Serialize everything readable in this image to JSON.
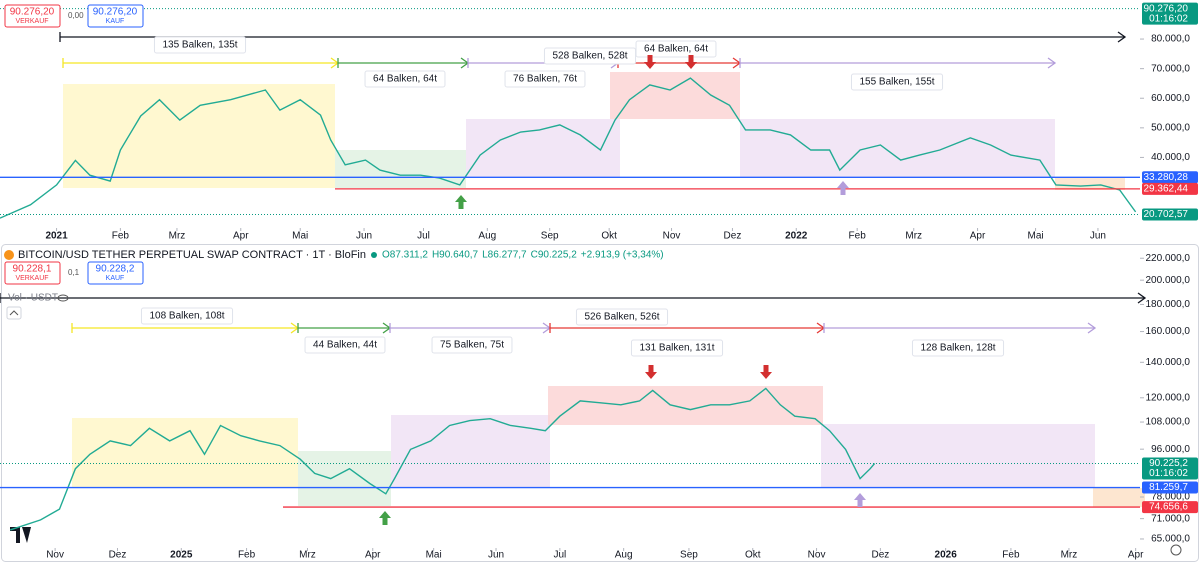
{
  "chart_data": [
    {
      "type": "line",
      "color": "#22ab94",
      "log_scale": false,
      "trade": {
        "sell_price": "90.276,20",
        "sell_label": "VERKAUF",
        "spread": "0,00",
        "buy_price": "90.276,20",
        "buy_label": "KAUF"
      },
      "x": [
        0,
        2.1,
        3.9,
        5.2,
        6.2,
        7.6,
        8.3,
        9.7,
        11.0,
        12.4,
        13.8,
        15.9,
        18.3,
        19.3,
        20.7,
        22.1,
        22.8,
        23.8,
        25.2,
        26.2,
        27.6,
        29.0,
        30.3,
        31.7,
        33.1,
        34.5,
        35.9,
        37.2,
        38.6,
        40.0,
        41.4,
        42.4,
        43.4,
        44.8,
        46.2,
        47.6,
        49.0,
        50.3,
        51.4,
        53.1,
        54.5,
        55.9,
        57.2,
        57.9,
        59.3,
        60.7,
        62.1,
        63.4,
        64.8,
        66.9,
        68.3,
        69.7,
        71.7,
        72.8,
        74.5,
        75.9,
        77.2,
        78.3
      ],
      "values": [
        19500,
        24000,
        30700,
        39000,
        34000,
        32000,
        42500,
        54000,
        59500,
        52600,
        57600,
        59500,
        62800,
        56000,
        59500,
        54300,
        45900,
        37500,
        39100,
        35700,
        34000,
        34000,
        33000,
        30700,
        40800,
        45900,
        48600,
        49300,
        51000,
        47600,
        42500,
        52600,
        59500,
        64500,
        62800,
        66800,
        61100,
        57600,
        49300,
        49300,
        47600,
        42500,
        42500,
        35700,
        42500,
        44200,
        39100,
        40800,
        42500,
        46600,
        44200,
        40800,
        39100,
        30700,
        30300,
        30700,
        29000,
        21600
      ],
      "xlim": [
        0,
        78.6
      ],
      "xticks": [
        {
          "value": 3.9,
          "label": "2021"
        },
        {
          "value": 8.3,
          "label": "Feb"
        },
        {
          "value": 12.2,
          "label": "Mrz"
        },
        {
          "value": 16.6,
          "label": "Apr"
        },
        {
          "value": 20.7,
          "label": "Mai"
        },
        {
          "value": 25.1,
          "label": "Jun"
        },
        {
          "value": 29.2,
          "label": "Jul"
        },
        {
          "value": 33.6,
          "label": "Aug"
        },
        {
          "value": 37.9,
          "label": "Sep"
        },
        {
          "value": 42.0,
          "label": "Okt"
        },
        {
          "value": 46.3,
          "label": "Nov"
        },
        {
          "value": 50.5,
          "label": "Dez"
        },
        {
          "value": 54.9,
          "label": "2022"
        },
        {
          "value": 59.1,
          "label": "Feb"
        },
        {
          "value": 63.0,
          "label": "Mrz"
        },
        {
          "value": 67.4,
          "label": "Apr"
        },
        {
          "value": 71.4,
          "label": "Mai"
        },
        {
          "value": 75.7,
          "label": "Jun"
        }
      ],
      "ylim": [
        16150,
        93200
      ],
      "yticks": [
        {
          "value": 80000,
          "label": "80.000,0"
        },
        {
          "value": 70000,
          "label": "70.000,0"
        },
        {
          "value": 60000,
          "label": "60.000,0"
        },
        {
          "value": 50000,
          "label": "50.000,0"
        },
        {
          "value": 40000,
          "label": "40.000,0"
        }
      ],
      "price_lines": [
        {
          "value": 90276.2,
          "label": "90.276,20",
          "time": "01:16:02",
          "color": "#089981",
          "dashed": true
        },
        {
          "value": 33280.28,
          "label": "33.280,28",
          "color": "#2962ff",
          "dashed": false
        },
        {
          "value": 29362.44,
          "label": "29.362,44",
          "color": "#f23645",
          "dashed": false
        },
        {
          "value": 20702.57,
          "label": "20.702,57",
          "color": "#089981",
          "dashed": true
        }
      ],
      "annotations": [
        "135 Balken, 135t",
        "64 Balken, 64t",
        "528 Balken, 528t",
        "64 Balken, 64t",
        "76 Balken, 76t",
        "155 Balken, 155t"
      ]
    },
    {
      "type": "line",
      "color": "#22ab94",
      "log_scale": true,
      "title": "BITCOIN/USD TETHER PERPETUAL SWAP CONTRACT · 1T · BloFin",
      "ohlc": [
        "O87.311,2",
        "H90.640,7",
        "L86.277,7",
        "C90.225,2",
        "+2.913,9 (+3,34%)"
      ],
      "volume_label": "Vol · USDT",
      "trade": {
        "sell_price": "90.228,1",
        "sell_label": "VERKAUF",
        "spread": "0,1",
        "buy_price": "90.228,2",
        "buy_label": "KAUF"
      },
      "x": [
        0.7,
        2.8,
        4.1,
        5.2,
        6.2,
        7.6,
        9.0,
        10.3,
        11.7,
        13.1,
        14.1,
        15.2,
        16.6,
        17.9,
        19.3,
        20.7,
        21.7,
        22.8,
        24.1,
        25.5,
        26.6,
        27.2,
        28.3,
        29.7,
        31.0,
        32.4,
        33.8,
        35.2,
        36.6,
        37.6,
        38.6,
        40.0,
        41.4,
        42.8,
        44.1,
        45.0,
        46.2,
        47.6,
        49.0,
        50.3,
        51.7,
        52.8,
        53.8,
        54.8,
        56.2,
        57.2,
        58.3,
        59.3,
        60.0,
        60.3
      ],
      "values": [
        67600,
        70600,
        74000,
        88200,
        93900,
        99500,
        97500,
        105100,
        99500,
        104000,
        93900,
        106400,
        101800,
        99500,
        97500,
        91900,
        86400,
        84500,
        88200,
        82700,
        79100,
        84500,
        95900,
        99500,
        106400,
        108700,
        109600,
        106400,
        105100,
        104000,
        110800,
        118400,
        117400,
        116400,
        118400,
        123900,
        116400,
        114000,
        116400,
        116400,
        118400,
        125000,
        116400,
        110800,
        109600,
        104000,
        95900,
        84500,
        88200,
        90225.2
      ],
      "xlim": [
        0,
        78.6
      ],
      "xticks": [
        {
          "value": 3.8,
          "label": "Nov"
        },
        {
          "value": 8.1,
          "label": "Dez"
        },
        {
          "value": 12.5,
          "label": "2025"
        },
        {
          "value": 17.0,
          "label": "Feb"
        },
        {
          "value": 21.2,
          "label": "Mrz"
        },
        {
          "value": 25.7,
          "label": "Apr"
        },
        {
          "value": 29.9,
          "label": "Mai"
        },
        {
          "value": 34.2,
          "label": "Jun"
        },
        {
          "value": 38.6,
          "label": "Jul"
        },
        {
          "value": 43.0,
          "label": "Aug"
        },
        {
          "value": 47.5,
          "label": "Sep"
        },
        {
          "value": 51.9,
          "label": "Okt"
        },
        {
          "value": 56.3,
          "label": "Nov"
        },
        {
          "value": 60.7,
          "label": "Dez"
        },
        {
          "value": 65.2,
          "label": "2026"
        },
        {
          "value": 69.7,
          "label": "Feb"
        },
        {
          "value": 73.7,
          "label": "Mrz"
        },
        {
          "value": 78.3,
          "label": "Apr"
        }
      ],
      "ylim": [
        62500,
        230000
      ],
      "yticks": [
        {
          "value": 220000,
          "label": "220.000,0"
        },
        {
          "value": 200000,
          "label": "200.000,0"
        },
        {
          "value": 180000,
          "label": "180.000,0"
        },
        {
          "value": 160000,
          "label": "160.000,0"
        },
        {
          "value": 140000,
          "label": "140.000,0"
        },
        {
          "value": 120000,
          "label": "120.000,0"
        },
        {
          "value": 108000,
          "label": "108.000,0"
        },
        {
          "value": 96000,
          "label": "96.000,0"
        },
        {
          "value": 78000,
          "label": "78.000,0"
        },
        {
          "value": 71000,
          "label": "71.000,0"
        },
        {
          "value": 65000,
          "label": "65.000,0"
        }
      ],
      "price_lines": [
        {
          "value": 90225.2,
          "label": "90.225,2",
          "time": "01:16:02",
          "color": "#089981",
          "dashed": true
        },
        {
          "value": 81259.7,
          "label": "81.259,7",
          "color": "#2962ff",
          "dashed": false
        },
        {
          "value": 74656.6,
          "label": "74.656,6",
          "color": "#f23645",
          "dashed": false
        }
      ],
      "annotations": [
        "108 Balken, 108t",
        "44 Balken, 44t",
        "75 Balken, 75t",
        "526 Balken, 526t",
        "131 Balken, 131t",
        "128 Balken, 128t"
      ]
    }
  ]
}
